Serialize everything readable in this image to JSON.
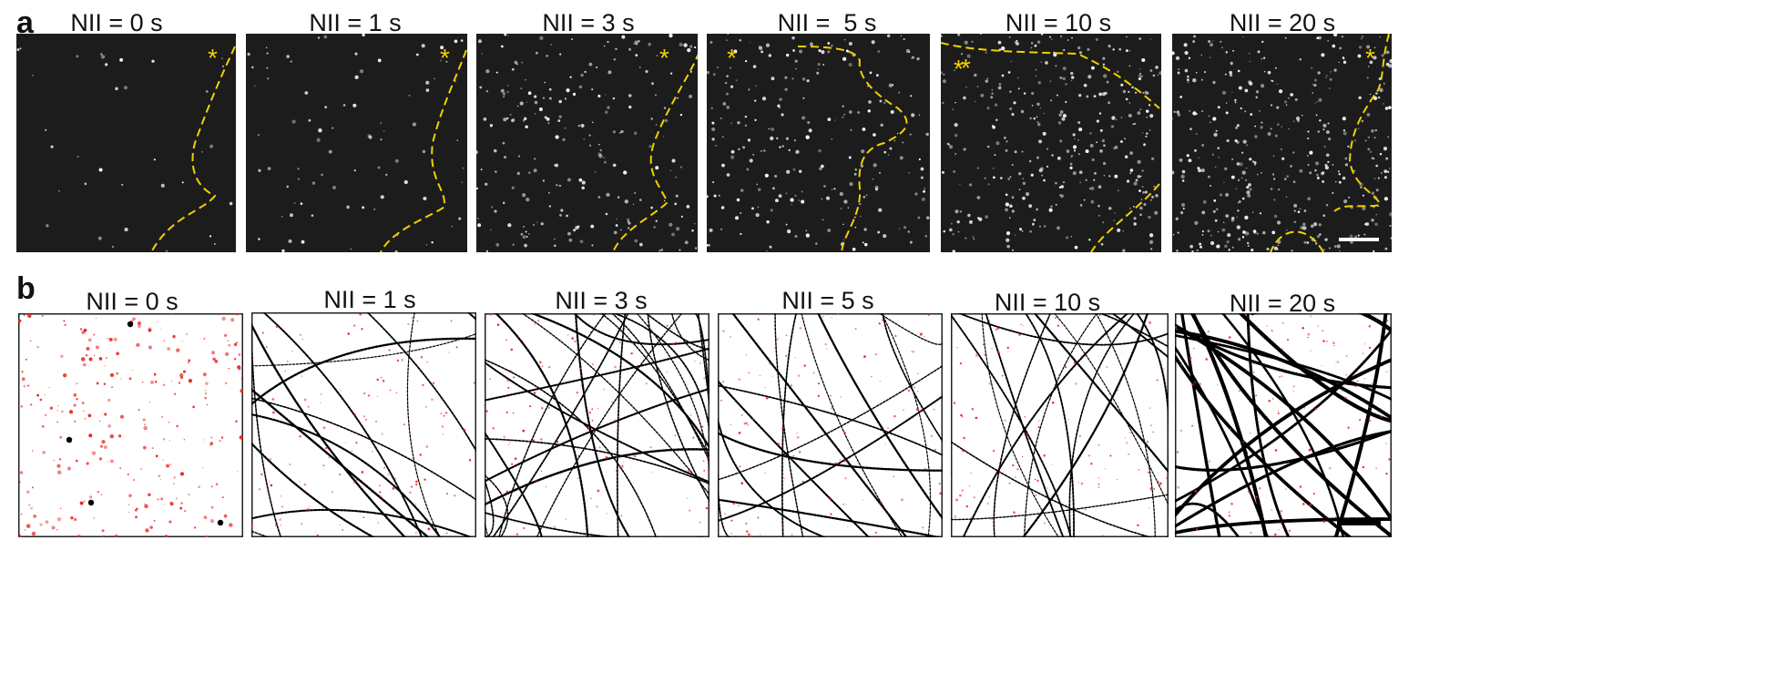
{
  "figure": {
    "row_a": {
      "letter": "a",
      "panels": [
        {
          "label": "NII = 0 s",
          "density": 0.08
        },
        {
          "label": "NII = 1 s",
          "density": 0.2
        },
        {
          "label": "NII = 3 s",
          "density": 0.55
        },
        {
          "label": "NII =  5 s",
          "density": 0.6
        },
        {
          "label": "NII = 10 s",
          "density": 0.85
        },
        {
          "label": "NII = 20 s",
          "density": 1.0
        }
      ],
      "marker": "*",
      "colors": {
        "background": "#1c1c1c",
        "boundary": "#f2d100",
        "marker": "#f2d100",
        "spots": "#ffffff"
      },
      "scale_bar": true
    },
    "row_b": {
      "letter": "b",
      "panels": [
        {
          "label": "NII = 0 s",
          "filaments": 0
        },
        {
          "label": "NII = 1 s",
          "filaments": 14
        },
        {
          "label": "NII = 3 s",
          "filaments": 30
        },
        {
          "label": "NII = 5 s",
          "filaments": 16
        },
        {
          "label": "NII = 10 s",
          "filaments": 18
        },
        {
          "label": "NII = 20 s",
          "filaments": 20
        }
      ],
      "colors": {
        "filament": "#000000",
        "localization": "#e8231e",
        "background": "#ffffff"
      },
      "scale_bar": true
    }
  }
}
